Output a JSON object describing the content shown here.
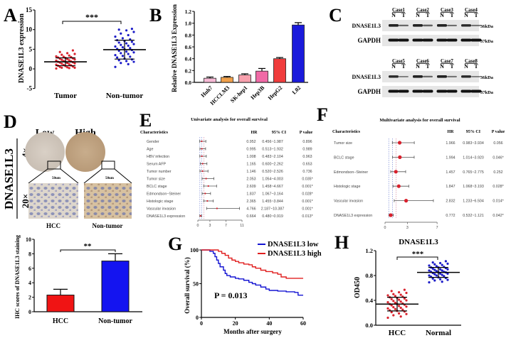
{
  "panel_letters": {
    "a": "A",
    "b": "B",
    "c": "C",
    "d": "D",
    "e": "E",
    "f": "F",
    "g": "G",
    "h": "H"
  },
  "chart_data": [
    {
      "panel": "A",
      "type": "scatter",
      "ylabel": "DNASE1L3 expression",
      "ylim": [
        -5,
        15
      ],
      "yticks": [
        -5,
        0,
        5,
        10,
        15
      ],
      "categories": [
        "Tumor",
        "Non-tumor"
      ],
      "significance": "***",
      "series": [
        {
          "category": "Tumor",
          "color": "#d9232e",
          "mean": 1.8,
          "sd": 1.0,
          "values": [
            0.1,
            0.2,
            0.3,
            0.3,
            0.4,
            0.5,
            0.6,
            0.7,
            0.8,
            0.9,
            1.0,
            1.1,
            1.2,
            1.3,
            1.4,
            1.5,
            1.6,
            1.7,
            1.8,
            1.8,
            1.9,
            2.0,
            2.1,
            2.2,
            2.3,
            2.4,
            2.5,
            2.6,
            2.7,
            2.8,
            2.9,
            3.0,
            3.1,
            3.2,
            3.4,
            3.6,
            3.8,
            4.0,
            4.3,
            4.7
          ]
        },
        {
          "category": "Non-tumor",
          "color": "#1c1cc8",
          "mean": 4.9,
          "sd": 2.4,
          "values": [
            0.5,
            1.2,
            1.5,
            1.8,
            2.0,
            2.2,
            2.4,
            2.6,
            2.9,
            3.1,
            3.3,
            3.5,
            3.8,
            4.0,
            4.2,
            4.4,
            4.6,
            4.8,
            5.0,
            5.1,
            5.3,
            5.5,
            5.7,
            5.9,
            6.1,
            6.3,
            6.5,
            6.7,
            6.9,
            7.1,
            7.3,
            7.5,
            7.8,
            8.2,
            8.6,
            9.0,
            9.4,
            9.8,
            10.0,
            10.2
          ]
        }
      ]
    },
    {
      "panel": "B",
      "type": "bar",
      "ylabel": "Relative DNASE1L3 Expression",
      "ylim": [
        0,
        1.2
      ],
      "yticks": [
        "0.0",
        "0.2",
        "0.4",
        "0.6",
        "0.8",
        "1.0",
        "1.2"
      ],
      "categories": [
        "Huh7",
        "HCCLM3",
        "SK-hep1",
        "Hep3B",
        "HepG2",
        "L02"
      ],
      "values": [
        0.07,
        0.085,
        0.125,
        0.19,
        0.4,
        0.97
      ],
      "errors": [
        0.02,
        0.015,
        0.02,
        0.045,
        0.02,
        0.04
      ],
      "colors": [
        "#f5b8d4",
        "#f0a04a",
        "#f7a0ad",
        "#f06aa6",
        "#f03c3c",
        "#1a1adb"
      ]
    },
    {
      "panel": "C",
      "type": "western-blot",
      "blocks": [
        {
          "cases": [
            "Case1",
            "Case2",
            "Case3",
            "Case4"
          ],
          "dnase_intensity": [
            [
              1,
              0.5
            ],
            [
              1,
              0.55
            ],
            [
              1,
              0.45
            ],
            [
              0.95,
              0.4
            ]
          ]
        },
        {
          "cases": [
            "Case5",
            "Case6",
            "Case7",
            "Case8"
          ],
          "dnase_intensity": [
            [
              0.95,
              0.35
            ],
            [
              1,
              0.5
            ],
            [
              1,
              0.4
            ],
            [
              0.95,
              0.35
            ]
          ]
        }
      ],
      "lane_labels": [
        "N",
        "T"
      ],
      "rows": [
        "DNASE1L3",
        "GAPDH"
      ],
      "sizes": [
        "36kDa",
        "37kDa"
      ]
    },
    {
      "panel": "D-ihc",
      "type": "image-grid",
      "row_title": "DNASE1L3",
      "columns": [
        "Low",
        "High"
      ],
      "magnifications": [
        "4×",
        "20×"
      ],
      "scale_bar": "50um",
      "captions": [
        "HCC",
        "Non-tumor"
      ]
    },
    {
      "panel": "D-bar",
      "type": "bar",
      "ylabel": "IHC scores of DNASE1L3 staining",
      "ylim": [
        0,
        10
      ],
      "yticks": [
        0,
        2,
        4,
        6,
        8,
        10
      ],
      "categories": [
        "HCC",
        "Non-tumor"
      ],
      "values": [
        2.3,
        7.0
      ],
      "errors": [
        0.8,
        1.0
      ],
      "colors": [
        "#f01414",
        "#1414f0"
      ],
      "significance": "**"
    },
    {
      "panel": "E",
      "type": "table",
      "title": "Univariate analysis for overall survival",
      "headers": [
        "Characteristics",
        "HR",
        "95% CI",
        "P value"
      ],
      "xticks": [
        0,
        3,
        7,
        11
      ],
      "rows": [
        {
          "name": "Gender",
          "hr": "0.952",
          "ci": "0.456~1.987",
          "p": "0.896",
          "lo": 0.456,
          "hi": 1.987,
          "h": 0.952
        },
        {
          "name": "Age",
          "hr": "0.995",
          "ci": "0.513~1.932",
          "p": "0.989",
          "lo": 0.513,
          "hi": 1.932,
          "h": 0.995
        },
        {
          "name": "HBV infection",
          "hr": "1.008",
          "ci": "0.483~2.104",
          "p": "0.963",
          "lo": 0.483,
          "hi": 2.104,
          "h": 1.008
        },
        {
          "name": "Serum AFP",
          "hr": "1.165",
          "ci": "0.600~2.262",
          "p": "0.653",
          "lo": 0.6,
          "hi": 2.262,
          "h": 1.165
        },
        {
          "name": "Tumor number",
          "hr": "1.146",
          "ci": "0.520~2.526",
          "p": "0.736",
          "lo": 0.52,
          "hi": 2.526,
          "h": 1.146
        },
        {
          "name": "Tumor size",
          "hr": "2.053",
          "ci": "1.054~4.003",
          "p": "0.035*",
          "lo": 1.054,
          "hi": 4.003,
          "h": 2.053
        },
        {
          "name": "BCLC stage",
          "hr": "2.609",
          "ci": "1.458~4.667",
          "p": "0.001*",
          "lo": 1.458,
          "hi": 4.667,
          "h": 2.609
        },
        {
          "name": "Edmondson−Steiner",
          "hr": "1.837",
          "ci": "1.067~3.164",
          "p": "0.028*",
          "lo": 1.067,
          "hi": 3.164,
          "h": 1.837
        },
        {
          "name": "Histologic stage",
          "hr": "2.365",
          "ci": "1.455~3.844",
          "p": "0.001*",
          "lo": 1.455,
          "hi": 3.844,
          "h": 2.365
        },
        {
          "name": "Vascular invasion",
          "hr": "4.766",
          "ci": "2.187~10.387",
          "p": "0.001*",
          "lo": 2.187,
          "hi": 10.387,
          "h": 4.766
        },
        {
          "name": "DNASE1L3 expression",
          "hr": "0.664",
          "ci": "0.480~0.919",
          "p": "0.013*",
          "lo": 0.48,
          "hi": 0.919,
          "h": 0.664
        }
      ]
    },
    {
      "panel": "F",
      "type": "table",
      "title": "Multivariate analysis for overall survival",
      "headers": [
        "Characteristics",
        "HR",
        "95% CI",
        "P value"
      ],
      "xticks": [
        0,
        3,
        7
      ],
      "rows": [
        {
          "name": "Tumor size",
          "hr": "1.966",
          "ci": "0.983~3.934",
          "p": "0.056",
          "lo": 0.983,
          "hi": 3.934,
          "h": 1.966
        },
        {
          "name": "BCLC stage",
          "hr": "1.994",
          "ci": "1.014~3.920",
          "p": "0.046*",
          "lo": 1.014,
          "hi": 3.92,
          "h": 1.994
        },
        {
          "name": "Edmondson−Steiner",
          "hr": "1.457",
          "ci": "0.765~2.775",
          "p": "0.252",
          "lo": 0.765,
          "hi": 2.775,
          "h": 1.457
        },
        {
          "name": "Histologic stage",
          "hr": "1.847",
          "ci": "1.068~3.193",
          "p": "0.028*",
          "lo": 1.068,
          "hi": 3.193,
          "h": 1.847
        },
        {
          "name": "Vascular invasion",
          "hr": "2.832",
          "ci": "1.233~6.504",
          "p": "0.014*",
          "lo": 1.233,
          "hi": 6.504,
          "h": 2.832
        },
        {
          "name": "DNASE1L3 expression",
          "hr": "0.772",
          "ci": "0.532~1.121",
          "p": "0.042*",
          "lo": 0.532,
          "hi": 1.121,
          "h": 0.772
        }
      ]
    },
    {
      "panel": "G",
      "type": "line",
      "xlabel": "Months after surgery",
      "ylabel": "Overall survival (%)",
      "xlim": [
        0,
        60
      ],
      "ylim": [
        0,
        100
      ],
      "xticks": [
        0,
        20,
        40,
        60
      ],
      "yticks": [
        0,
        50,
        100
      ],
      "annotation": "P = 0.013",
      "legend": "top-right",
      "series": [
        {
          "name": "DNASE1L3 low",
          "color": "#1414d2",
          "x": [
            0,
            3,
            5,
            7,
            8,
            9,
            10,
            11,
            13,
            14,
            15,
            17,
            20,
            22,
            25,
            28,
            30,
            32,
            35,
            38,
            40,
            45,
            50,
            55,
            57,
            60
          ],
          "y": [
            100,
            100,
            98,
            95,
            90,
            85,
            80,
            75,
            70,
            65,
            62,
            60,
            58,
            57,
            55,
            52,
            50,
            48,
            45,
            42,
            40,
            39,
            38,
            37,
            33,
            33
          ]
        },
        {
          "name": "DNASE1L3 high",
          "color": "#e01e1e",
          "x": [
            0,
            8,
            10,
            12,
            14,
            16,
            18,
            20,
            22,
            25,
            28,
            30,
            32,
            35,
            38,
            42,
            45,
            47,
            50,
            60
          ],
          "y": [
            100,
            100,
            98,
            95,
            92,
            88,
            85,
            83,
            81,
            79,
            78,
            75,
            73,
            70,
            68,
            66,
            64,
            60,
            58,
            58
          ]
        }
      ]
    },
    {
      "panel": "H",
      "type": "scatter",
      "title": "DNASE1L3",
      "ylabel": "OD450",
      "ylim": [
        0,
        1.2
      ],
      "yticks": [
        "0.0",
        "0.4",
        "0.8",
        "1.2"
      ],
      "categories": [
        "HCC",
        "Normal"
      ],
      "significance": "***",
      "series": [
        {
          "category": "HCC",
          "color": "#d9232e",
          "mean": 0.34,
          "sd": 0.11,
          "values": [
            0.12,
            0.14,
            0.16,
            0.18,
            0.19,
            0.21,
            0.22,
            0.23,
            0.24,
            0.25,
            0.26,
            0.27,
            0.28,
            0.29,
            0.3,
            0.31,
            0.32,
            0.33,
            0.34,
            0.34,
            0.35,
            0.36,
            0.37,
            0.38,
            0.39,
            0.4,
            0.41,
            0.42,
            0.43,
            0.44,
            0.45,
            0.46,
            0.47,
            0.48,
            0.49,
            0.5,
            0.52,
            0.53,
            0.55,
            0.57
          ]
        },
        {
          "category": "Normal",
          "color": "#1c1cc8",
          "mean": 0.85,
          "sd": 0.08,
          "values": [
            0.69,
            0.7,
            0.72,
            0.73,
            0.74,
            0.75,
            0.76,
            0.77,
            0.78,
            0.79,
            0.8,
            0.8,
            0.81,
            0.82,
            0.83,
            0.83,
            0.84,
            0.85,
            0.85,
            0.86,
            0.86,
            0.87,
            0.88,
            0.88,
            0.89,
            0.9,
            0.9,
            0.91,
            0.92,
            0.93,
            0.93,
            0.94,
            0.95,
            0.96,
            0.97,
            0.98,
            0.99,
            1.0,
            1.01,
            1.03
          ]
        }
      ]
    }
  ]
}
